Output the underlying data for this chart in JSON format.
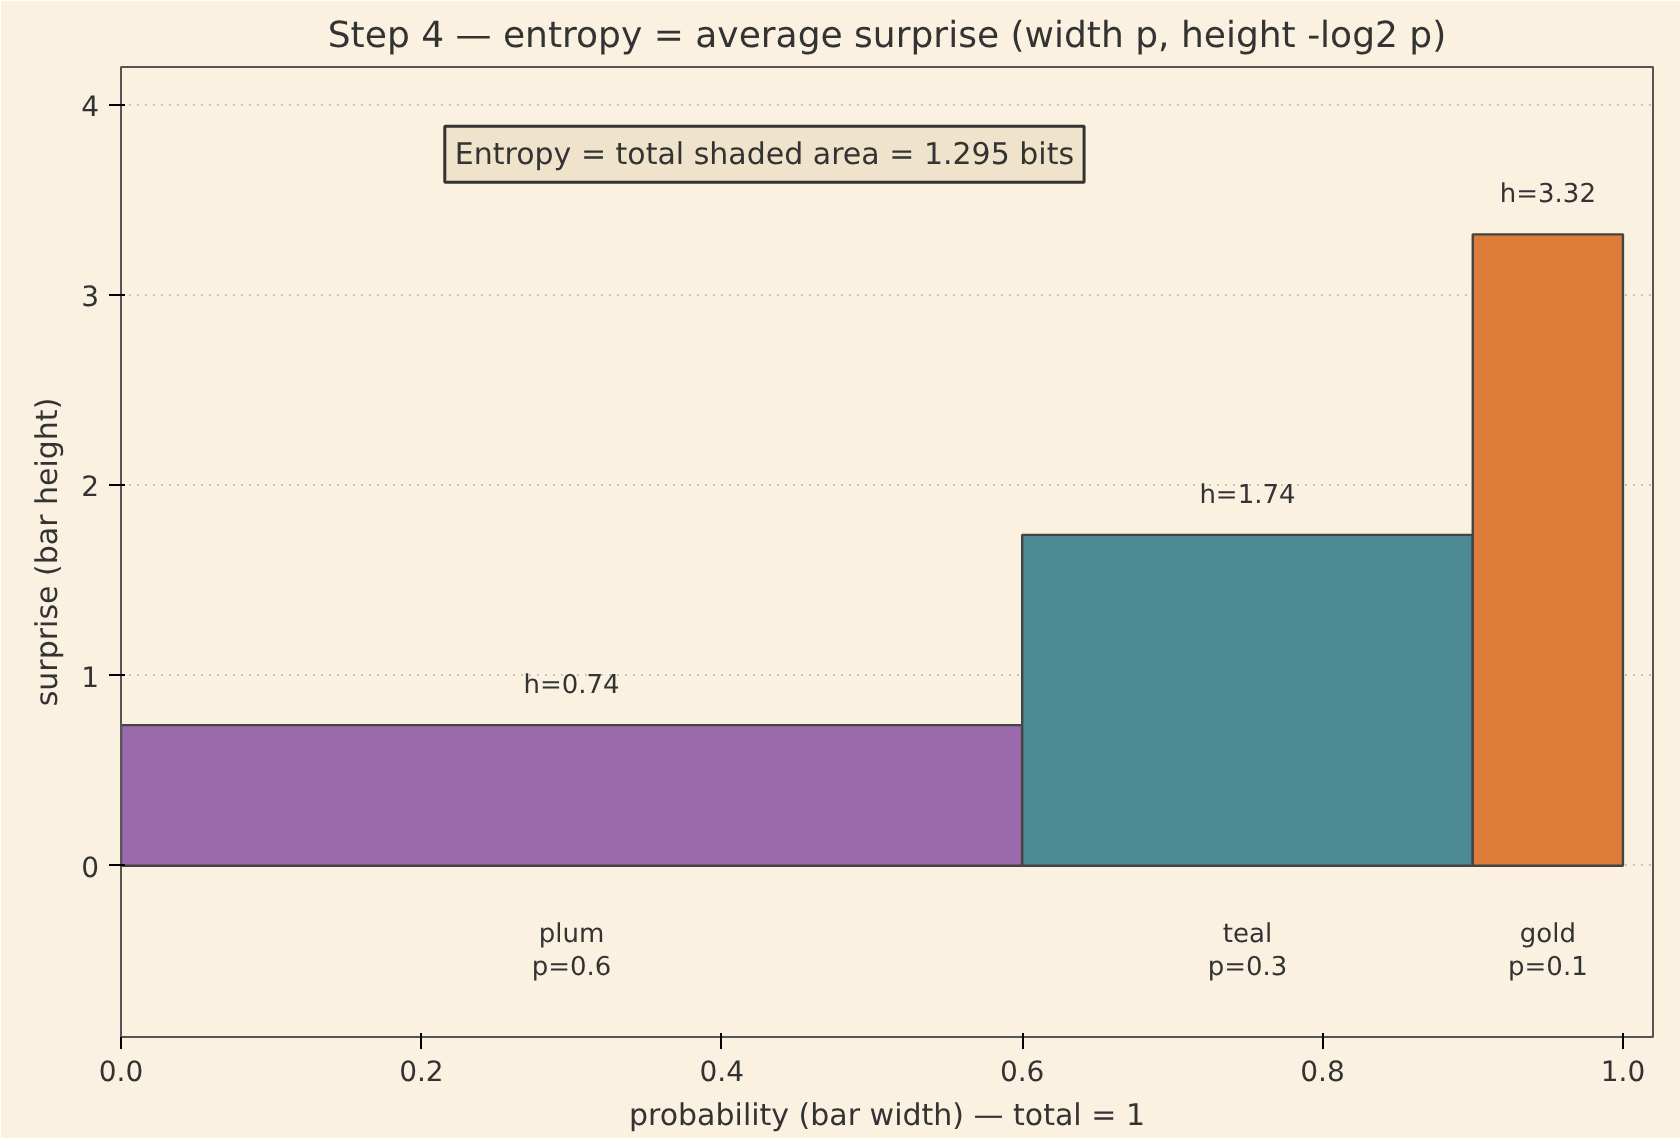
{
  "chart_data": {
    "type": "histogram",
    "title": "Step 4 — entropy = average surprise (width p, height -log2 p)",
    "xlabel": "probability (bar width) — total = 1",
    "ylabel": "surprise (bar height)",
    "bins": [
      0,
      0.6,
      0.9,
      1.0
    ],
    "values": [
      0.74,
      1.74,
      3.32
    ],
    "colors": [
      "#9b6aab",
      "#4e8a94",
      "#dd7b38"
    ],
    "value_labels": [
      "h=0.74",
      "h=1.74",
      "h=3.32"
    ],
    "annotations": [
      "Entropy = total shaded area = 1.295 bits",
      "plum\np=0.6",
      "teal\np=0.3",
      "gold\np=0.1"
    ],
    "xlim": [
      0,
      1.02
    ],
    "ylim": [
      -0.9,
      4.2
    ],
    "xticks": [
      {
        "value": 0,
        "label": "0.0"
      },
      {
        "value": 0.2,
        "label": "0.2"
      },
      {
        "value": 0.4,
        "label": "0.4"
      },
      {
        "value": 0.6,
        "label": "0.6"
      },
      {
        "value": 0.8,
        "label": "0.8"
      },
      {
        "value": 1.0,
        "label": "1.0"
      }
    ],
    "yticks": [
      0,
      1,
      2,
      3,
      4
    ],
    "grid": "y"
  }
}
